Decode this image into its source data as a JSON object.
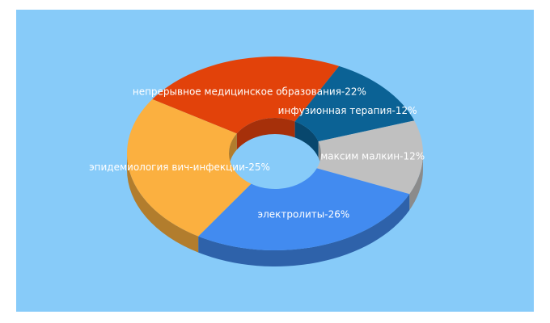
{
  "chart_data": {
    "type": "pie",
    "variant": "3d-donut",
    "title": "",
    "background": "#87cbf9",
    "slices": [
      {
        "label": "непрерывное медицинское образования-22%",
        "value": 22,
        "color": "#e2420a",
        "side_color": "#a6300a"
      },
      {
        "label": "инфузионная терапия-12%",
        "value": 12,
        "color": "#0b6295",
        "side_color": "#08476d"
      },
      {
        "label": "максим малкин-12%",
        "value": 12,
        "color": "#c0c0c0",
        "side_color": "#8b8b8b"
      },
      {
        "label": "электролиты-26%",
        "value": 26,
        "color": "#428bf0",
        "side_color": "#2e62aa"
      },
      {
        "label": "эпидемиология вич-инфекции-25%",
        "value": 25,
        "color": "#fbb040",
        "side_color": "#b27d2d"
      }
    ]
  }
}
